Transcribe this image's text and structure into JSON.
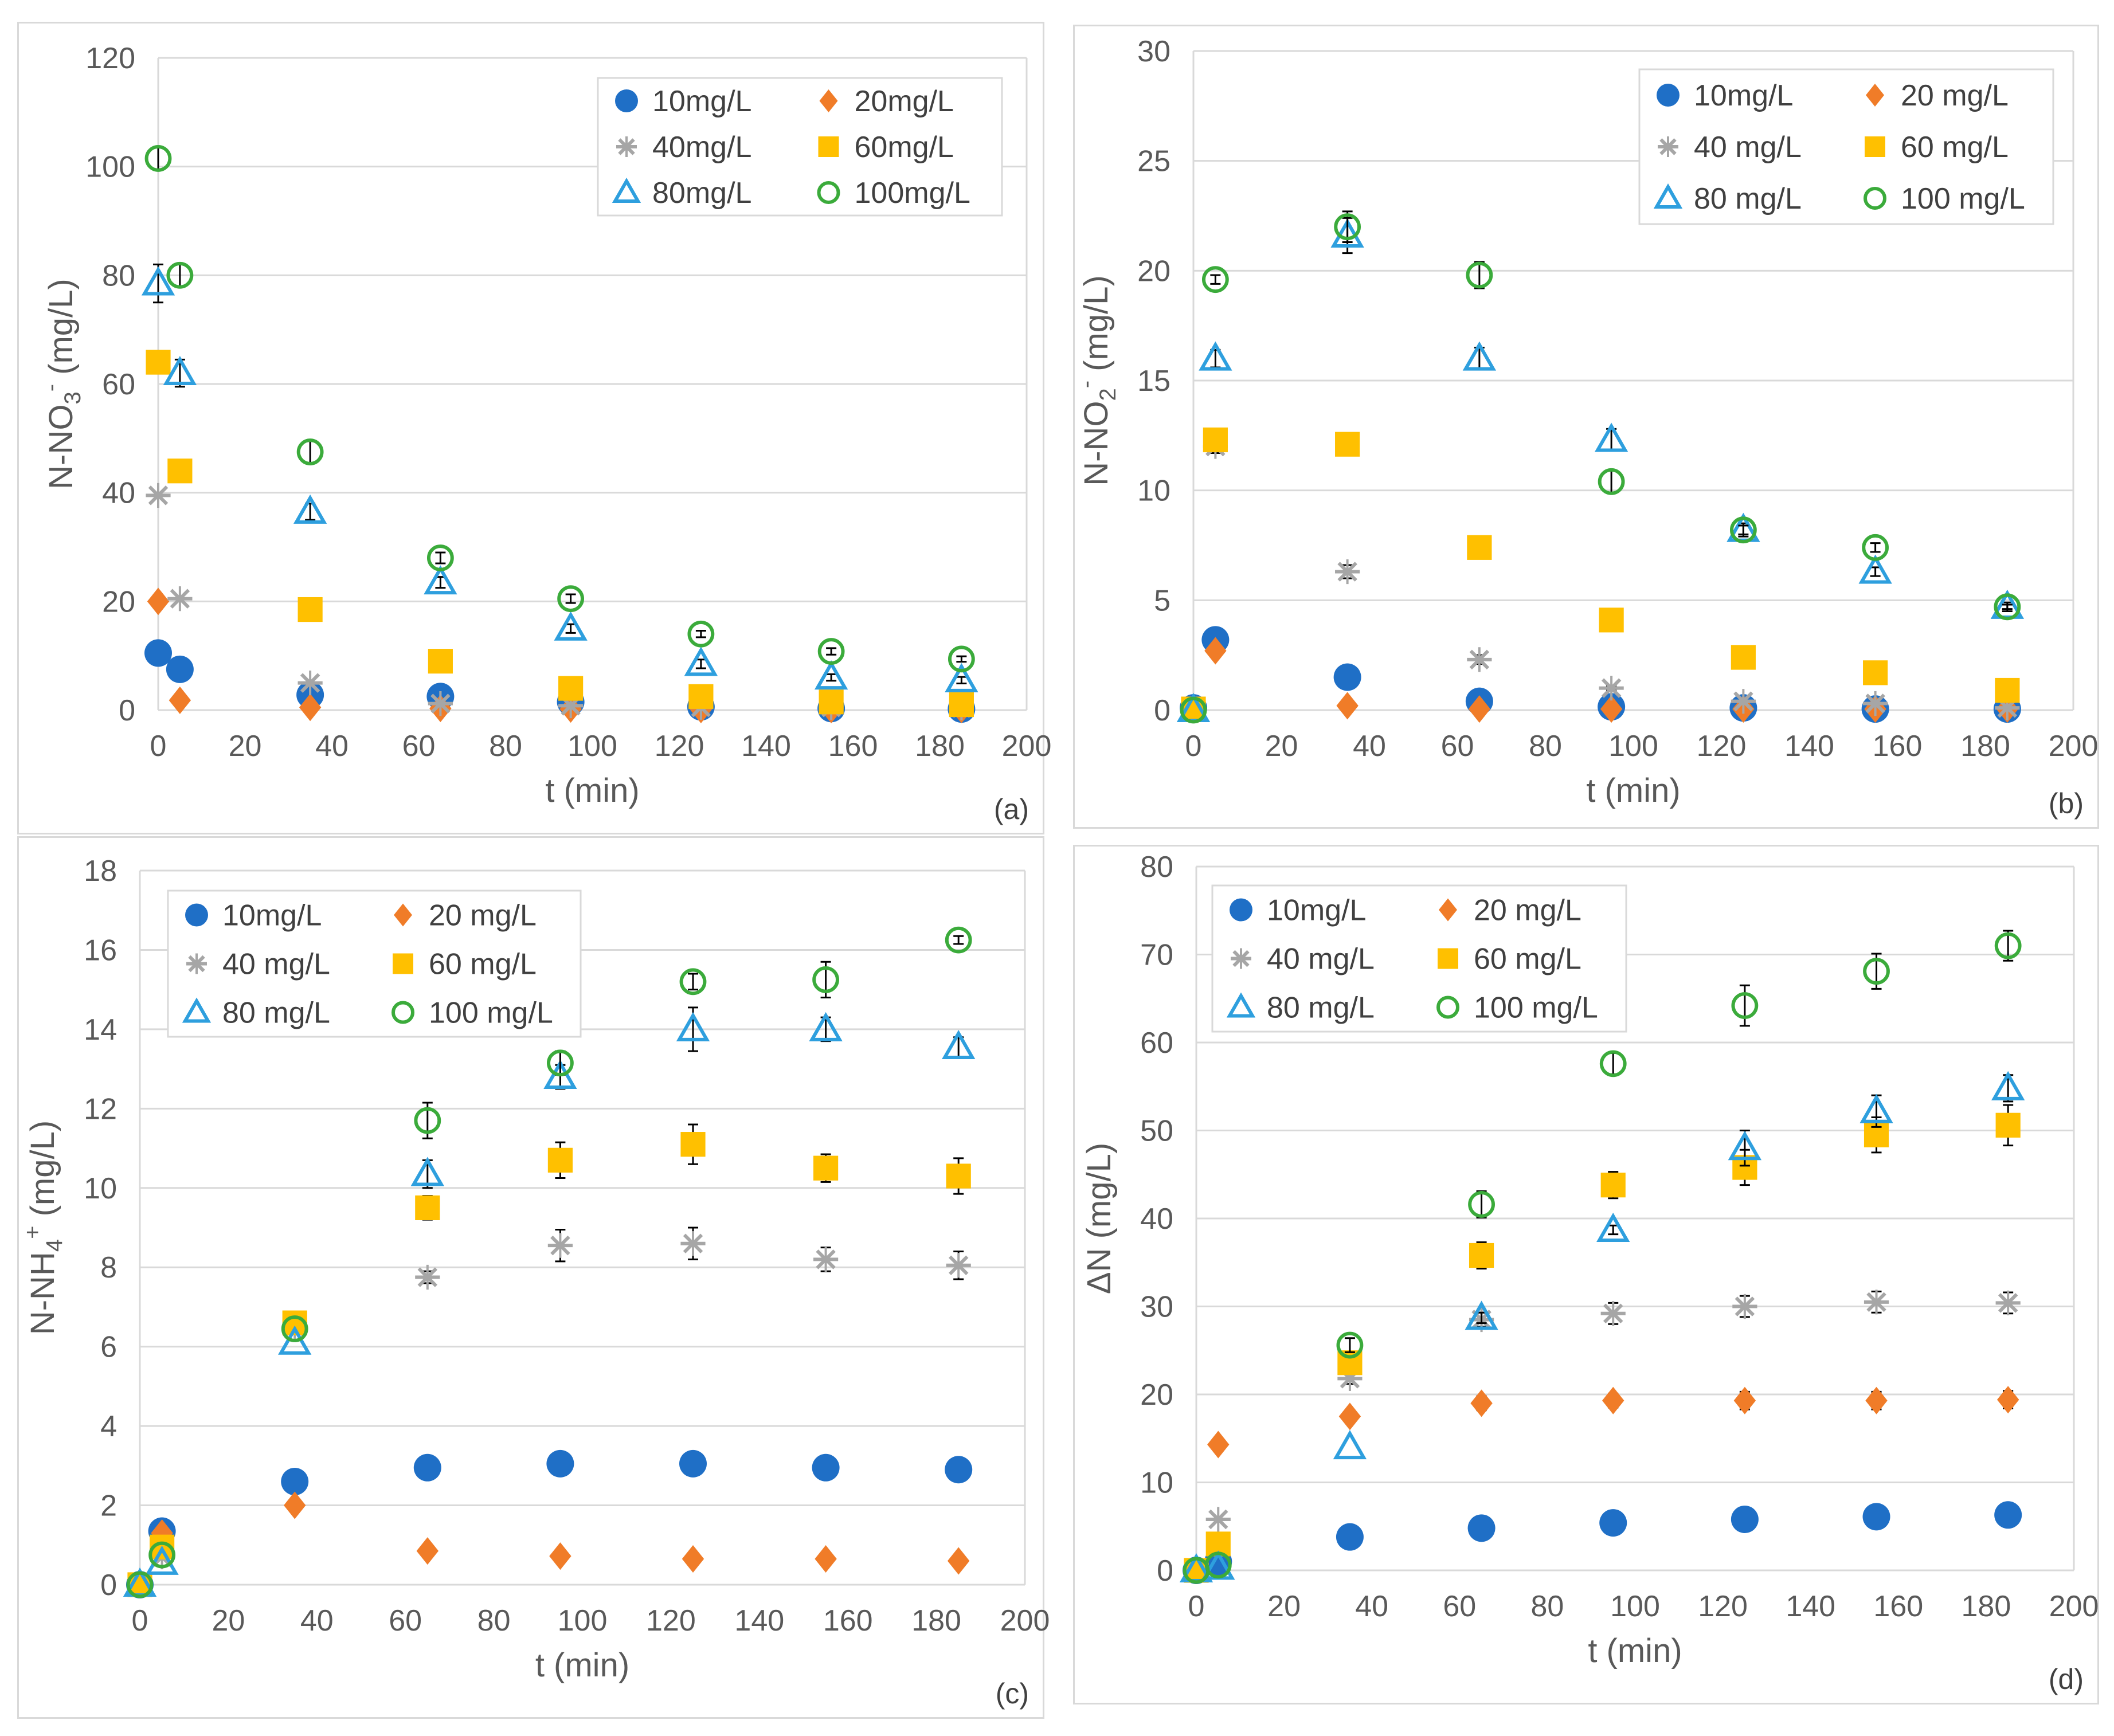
{
  "colors": {
    "c10": "#1f6fc6",
    "c20": "#f07c28",
    "c40": "#a6a6a6",
    "c60": "#ffc000",
    "c80": "#2e9fde",
    "c100": "#3bab3b",
    "grid": "#d9d9d9",
    "text": "#595959",
    "errbar": "#000000"
  },
  "chart_data": [
    {
      "id": "a",
      "type": "scatter",
      "tag": "(a)",
      "ylabel": {
        "main": "N-NO",
        "sub": "3",
        "sup": "-",
        "unit": " (mg/L)"
      },
      "xlabel": "t (min)",
      "xlim": [
        0,
        200
      ],
      "ylim": [
        0,
        120
      ],
      "xticks": [
        "0",
        "20",
        "40",
        "60",
        "80",
        "100",
        "120",
        "140",
        "160",
        "180",
        "200"
      ],
      "yticks": [
        "0",
        "20",
        "40",
        "60",
        "80",
        "100",
        "120"
      ],
      "legend_position": "top-right",
      "series": [
        {
          "name": "10mg/L",
          "marker": "circle-filled",
          "color": "c10",
          "x": [
            0,
            5,
            35,
            65,
            95,
            125,
            155,
            185
          ],
          "y": [
            10.5,
            7.5,
            2.8,
            2.5,
            1.5,
            0.6,
            0.3,
            0.2
          ],
          "err": [
            0,
            0,
            0,
            0,
            0,
            0,
            0,
            0
          ]
        },
        {
          "name": "20mg/L",
          "marker": "diamond",
          "color": "c20",
          "x": [
            0,
            5,
            35,
            65,
            95,
            125,
            155,
            185
          ],
          "y": [
            20,
            1.8,
            0.5,
            0.3,
            0.2,
            0.1,
            0.1,
            0.1
          ],
          "err": [
            0,
            0,
            0,
            0,
            0,
            0,
            0,
            0
          ]
        },
        {
          "name": "40mg/L",
          "marker": "star",
          "color": "c40",
          "x": [
            0,
            5,
            35,
            65,
            95,
            125,
            155,
            185
          ],
          "y": [
            39.5,
            20.5,
            5.0,
            1.2,
            0.8,
            0.5,
            0.5,
            0.4
          ],
          "err": [
            0,
            0,
            0,
            0,
            0,
            0,
            0,
            0
          ]
        },
        {
          "name": "60mg/L",
          "marker": "square",
          "color": "c60",
          "x": [
            0,
            5,
            35,
            65,
            95,
            125,
            155,
            185
          ],
          "y": [
            64,
            44,
            18.5,
            9,
            4,
            2.5,
            1.5,
            1.0
          ],
          "err": [
            1.5,
            1.5,
            0,
            0,
            0,
            0,
            0,
            0
          ]
        },
        {
          "name": "80mg/L",
          "marker": "triangle",
          "color": "c80",
          "x": [
            0,
            5,
            35,
            65,
            95,
            125,
            155,
            185
          ],
          "y": [
            78.5,
            62,
            36.5,
            23.5,
            15,
            8.5,
            6,
            5.5
          ],
          "err": [
            3.5,
            2.5,
            1.5,
            1.0,
            0.8,
            0.8,
            0.6,
            0.6
          ]
        },
        {
          "name": "100mg/L",
          "marker": "circle-open",
          "color": "c100",
          "x": [
            0,
            5,
            35,
            65,
            95,
            125,
            155,
            185
          ],
          "y": [
            101.5,
            80,
            47.5,
            28,
            20.5,
            14,
            10.8,
            9.4
          ],
          "err": [
            2,
            2,
            2,
            1,
            0.8,
            0.6,
            0.6,
            0.5
          ]
        }
      ]
    },
    {
      "id": "b",
      "type": "scatter",
      "tag": "(b)",
      "ylabel": {
        "main": "N-NO",
        "sub": "2",
        "sup": "-",
        "unit": " (mg/L)"
      },
      "xlabel": "t (min)",
      "xlim": [
        0,
        200
      ],
      "ylim": [
        0,
        30
      ],
      "xticks": [
        "0",
        "20",
        "40",
        "60",
        "80",
        "100",
        "120",
        "140",
        "160",
        "180",
        "200"
      ],
      "yticks": [
        "0",
        "5",
        "10",
        "15",
        "20",
        "25",
        "30"
      ],
      "legend_position": "top-right",
      "series": [
        {
          "name": "10mg/L",
          "marker": "circle-filled",
          "color": "c10",
          "x": [
            0,
            5,
            35,
            65,
            95,
            125,
            155,
            185
          ],
          "y": [
            0.1,
            3.2,
            1.5,
            0.4,
            0.15,
            0.1,
            0.05,
            0.05
          ],
          "err": [
            0,
            0,
            0,
            0,
            0,
            0,
            0,
            0
          ]
        },
        {
          "name": "20 mg/L",
          "marker": "diamond",
          "color": "c20",
          "x": [
            0,
            5,
            35,
            65,
            95,
            125,
            155,
            185
          ],
          "y": [
            0.05,
            2.7,
            0.2,
            0.05,
            0.05,
            0.05,
            0.05,
            0.05
          ],
          "err": [
            0,
            0,
            0,
            0,
            0,
            0,
            0,
            0
          ]
        },
        {
          "name": "40 mg/L",
          "marker": "star",
          "color": "c40",
          "x": [
            0,
            5,
            35,
            65,
            95,
            125,
            155,
            185
          ],
          "y": [
            0.05,
            12.0,
            6.3,
            2.3,
            1.0,
            0.4,
            0.3,
            0.1
          ],
          "err": [
            0,
            0.3,
            0.3,
            0.2,
            0.1,
            0,
            0,
            0
          ]
        },
        {
          "name": "60 mg/L",
          "marker": "square",
          "color": "c60",
          "x": [
            0,
            5,
            35,
            65,
            95,
            125,
            155,
            185
          ],
          "y": [
            0.05,
            12.3,
            12.1,
            7.4,
            4.1,
            2.4,
            1.7,
            0.9
          ],
          "err": [
            0,
            0.3,
            0,
            0.3,
            0,
            0,
            0,
            0
          ]
        },
        {
          "name": "80 mg/L",
          "marker": "triangle",
          "color": "c80",
          "x": [
            0,
            5,
            35,
            65,
            95,
            125,
            155,
            185
          ],
          "y": [
            0,
            16.0,
            21.6,
            16.0,
            12.3,
            8.2,
            6.3,
            4.7
          ],
          "err": [
            0,
            0.4,
            0.8,
            0.5,
            0.5,
            0.3,
            0.2,
            0.2
          ]
        },
        {
          "name": "100 mg/L",
          "marker": "circle-open",
          "color": "c100",
          "x": [
            0,
            5,
            35,
            65,
            95,
            125,
            155,
            185
          ],
          "y": [
            0,
            19.6,
            22.0,
            19.8,
            10.4,
            8.2,
            7.4,
            4.7
          ],
          "err": [
            0,
            0.2,
            0.7,
            0.6,
            0.5,
            0.2,
            0.2,
            0.1
          ]
        }
      ]
    },
    {
      "id": "c",
      "type": "scatter",
      "tag": "(c)",
      "ylabel": {
        "main": "N-NH",
        "sub": "4",
        "sup": "+",
        "unit": " (mg/L)"
      },
      "xlabel": "t (min)",
      "xlim": [
        0,
        200
      ],
      "ylim": [
        0,
        18
      ],
      "xticks": [
        "0",
        "20",
        "40",
        "60",
        "80",
        "100",
        "120",
        "140",
        "160",
        "180",
        "200"
      ],
      "yticks": [
        "0",
        "2",
        "4",
        "6",
        "8",
        "10",
        "12",
        "14",
        "16",
        "18"
      ],
      "legend_position": "top-left",
      "series": [
        {
          "name": "10mg/L",
          "marker": "circle-filled",
          "color": "c10",
          "x": [
            0,
            5,
            35,
            65,
            95,
            125,
            155,
            185
          ],
          "y": [
            0,
            1.35,
            2.6,
            2.95,
            3.05,
            3.05,
            2.95,
            2.9
          ],
          "err": [
            0,
            0,
            0,
            0,
            0,
            0,
            0,
            0
          ]
        },
        {
          "name": "20 mg/L",
          "marker": "diamond",
          "color": "c20",
          "x": [
            0,
            5,
            35,
            65,
            95,
            125,
            155,
            185
          ],
          "y": [
            0,
            1.3,
            2.0,
            0.85,
            0.72,
            0.65,
            0.65,
            0.6
          ],
          "err": [
            0,
            0,
            0,
            0,
            0,
            0,
            0,
            0
          ]
        },
        {
          "name": "40 mg/L",
          "marker": "star",
          "color": "c40",
          "x": [
            0,
            5,
            35,
            65,
            95,
            125,
            155,
            185
          ],
          "y": [
            0,
            0.7,
            6.5,
            7.75,
            8.55,
            8.6,
            8.2,
            8.05
          ],
          "err": [
            0,
            0,
            0,
            0.15,
            0.4,
            0.4,
            0.3,
            0.35
          ]
        },
        {
          "name": "60 mg/L",
          "marker": "square",
          "color": "c60",
          "x": [
            0,
            5,
            35,
            65,
            95,
            125,
            155,
            185
          ],
          "y": [
            0,
            0.95,
            6.6,
            9.5,
            10.7,
            11.1,
            10.5,
            10.3
          ],
          "err": [
            0,
            0,
            0.2,
            0.3,
            0.45,
            0.5,
            0.35,
            0.45
          ]
        },
        {
          "name": "80 mg/L",
          "marker": "triangle",
          "color": "c80",
          "x": [
            0,
            5,
            35,
            65,
            95,
            125,
            155,
            185
          ],
          "y": [
            0,
            0.55,
            6.1,
            10.35,
            12.8,
            14.0,
            14.0,
            13.55
          ],
          "err": [
            0,
            0,
            0,
            0.35,
            0.3,
            0.55,
            0.3,
            0.25
          ]
        },
        {
          "name": "100 mg/L",
          "marker": "circle-open",
          "color": "c100",
          "x": [
            0,
            5,
            35,
            65,
            95,
            125,
            155,
            185
          ],
          "y": [
            0,
            0.75,
            6.45,
            11.7,
            13.15,
            15.2,
            15.25,
            16.25
          ],
          "err": [
            0,
            0,
            0,
            0.45,
            0.3,
            0.2,
            0.45,
            0.1
          ]
        }
      ]
    },
    {
      "id": "d",
      "type": "scatter",
      "tag": "(d)",
      "ylabel": {
        "main": "ΔN",
        "sub": "",
        "sup": "",
        "unit": " (mg/L)"
      },
      "xlabel": "t (min)",
      "xlim": [
        0,
        200
      ],
      "ylim": [
        0,
        80
      ],
      "xticks": [
        "0",
        "20",
        "40",
        "60",
        "80",
        "100",
        "120",
        "140",
        "160",
        "180",
        "200"
      ],
      "yticks": [
        "0",
        "10",
        "20",
        "30",
        "40",
        "50",
        "60",
        "70",
        "80"
      ],
      "legend_position": "top-left",
      "series": [
        {
          "name": "10mg/L",
          "marker": "circle-filled",
          "color": "c10",
          "x": [
            0,
            5,
            35,
            65,
            95,
            125,
            155,
            185
          ],
          "y": [
            0,
            1.0,
            3.8,
            4.8,
            5.4,
            5.8,
            6.1,
            6.3
          ],
          "err": [
            0,
            0,
            0,
            0,
            0,
            0,
            0,
            0
          ]
        },
        {
          "name": "20 mg/L",
          "marker": "diamond",
          "color": "c20",
          "x": [
            0,
            5,
            35,
            65,
            95,
            125,
            155,
            185
          ],
          "y": [
            0,
            14.3,
            17.5,
            19.0,
            19.3,
            19.3,
            19.3,
            19.4
          ],
          "err": [
            0,
            0,
            0,
            0.8,
            0.8,
            1.0,
            1.0,
            1.0
          ]
        },
        {
          "name": "40 mg/L",
          "marker": "star",
          "color": "c40",
          "x": [
            0,
            5,
            35,
            65,
            95,
            125,
            155,
            185
          ],
          "y": [
            0,
            5.8,
            21.8,
            28.5,
            29.2,
            30.0,
            30.5,
            30.4
          ],
          "err": [
            0,
            0,
            0.6,
            0.8,
            1.2,
            1.2,
            1.2,
            1.2
          ]
        },
        {
          "name": "60 mg/L",
          "marker": "square",
          "color": "c60",
          "x": [
            0,
            5,
            35,
            65,
            95,
            125,
            155,
            185
          ],
          "y": [
            0,
            3.0,
            23.6,
            35.8,
            43.8,
            45.8,
            49.5,
            50.6
          ],
          "err": [
            0,
            0,
            0,
            1.5,
            1.5,
            2.0,
            2.0,
            2.3
          ]
        },
        {
          "name": "80 mg/L",
          "marker": "triangle",
          "color": "c80",
          "x": [
            0,
            5,
            35,
            65,
            95,
            125,
            155,
            185
          ],
          "y": [
            0,
            0.3,
            14.0,
            28.7,
            38.7,
            48.0,
            52.2,
            54.8
          ],
          "err": [
            0,
            0,
            0,
            0.6,
            0.5,
            2.0,
            1.8,
            1.5
          ]
        },
        {
          "name": "100 mg/L",
          "marker": "circle-open",
          "color": "c100",
          "x": [
            0,
            5,
            35,
            65,
            95,
            125,
            155,
            185
          ],
          "y": [
            0,
            0.6,
            25.6,
            41.6,
            57.6,
            64.2,
            68.1,
            71.0
          ],
          "err": [
            0,
            0,
            0.8,
            1.5,
            1.2,
            2.3,
            2.0,
            1.7
          ]
        }
      ]
    }
  ]
}
